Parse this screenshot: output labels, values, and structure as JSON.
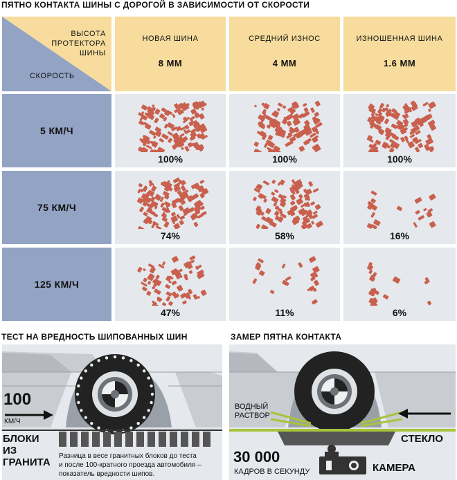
{
  "top_title": "ПЯТНО КОНТАКТА ШИНЫ С ДОРОГОЙ В ЗАВИСИМОСТИ ОТ СКОРОСТИ",
  "corner": {
    "top_label": "ВЫСОТА ПРОТЕКТОРА ШИНЫ",
    "top_lines": [
      "ВЫСОТА",
      "ПРОТЕКТОРА",
      "ШИНЫ"
    ],
    "bottom_label": "СКОРОСТЬ"
  },
  "columns": [
    {
      "label": "НОВАЯ ШИНА",
      "depth": "8 ММ"
    },
    {
      "label": "СРЕДНИЙ ИЗНОС",
      "depth": "4 ММ"
    },
    {
      "label": "ИЗНОШЕННАЯ ШИНА",
      "depth": "1.6 ММ"
    }
  ],
  "rows": [
    {
      "speed": "5 КМ/Ч",
      "values": [
        "100%",
        "100%",
        "100%"
      ]
    },
    {
      "speed": "75 КМ/Ч",
      "values": [
        "74%",
        "58%",
        "16%"
      ]
    },
    {
      "speed": "125 КМ/Ч",
      "values": [
        "47%",
        "11%",
        "6%"
      ]
    }
  ],
  "contact_fraction": [
    [
      1.0,
      1.0,
      1.0
    ],
    [
      0.74,
      0.58,
      0.16
    ],
    [
      0.47,
      0.11,
      0.06
    ]
  ],
  "stud_test": {
    "title": "ТЕСТ НА ВРЕДНОСТЬ ШИПОВАННЫХ ШИН",
    "speed_value": "100",
    "speed_unit": "КМ/Ч",
    "blocks_label_lines": [
      "БЛОКИ",
      "ИЗ",
      "ГРАНИТА"
    ],
    "caption_lines": [
      "Разница в весе гранитных блоков до теста",
      "и после 100-кратного проезда автомобиля –",
      "показатель вредности шипов."
    ]
  },
  "contact_measure": {
    "title": "ЗАМЕР ПЯТНА КОНТАКТА",
    "water_lines": [
      "ВОДНЫЙ",
      "РАСТВОР"
    ],
    "glass": "СТЕКЛО",
    "fps_value": "30 000",
    "fps_unit": "КАДРОВ В СЕКУНДУ",
    "camera": "КАМЕРА"
  },
  "colors": {
    "header": "#f7dc9d",
    "row_header": "#93a3c4",
    "cell": "#e5e8ec",
    "tread": "#c9604e",
    "green": "#a7c43b"
  }
}
